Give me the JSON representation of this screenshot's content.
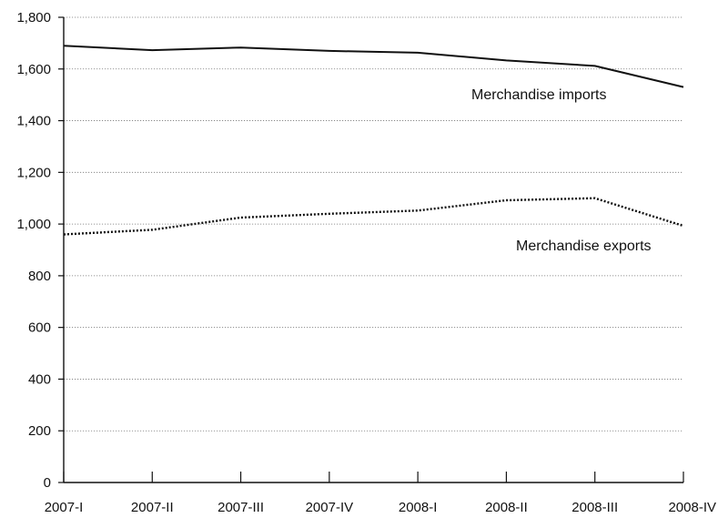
{
  "chart_data": {
    "type": "line",
    "title": "",
    "xlabel": "",
    "ylabel": "",
    "categories": [
      "2007-I",
      "2007-II",
      "2007-III",
      "2007-IV",
      "2008-I",
      "2008-II",
      "2008-III",
      "2008-IV"
    ],
    "ylim": [
      0,
      1800
    ],
    "yticks": [
      "0",
      "200",
      "400",
      "600",
      "800",
      "1,000",
      "1,200",
      "1,400",
      "1,600",
      "1,800"
    ],
    "grid": true,
    "legend": "none",
    "series": [
      {
        "name": "Merchandise imports",
        "style": "solid",
        "color": "#111111",
        "values": [
          1690,
          1673,
          1683,
          1670,
          1663,
          1633,
          1612,
          1530
        ]
      },
      {
        "name": "Merchandise exports",
        "style": "dotted",
        "color": "#111111",
        "values": [
          960,
          978,
          1025,
          1040,
          1052,
          1092,
          1100,
          993
        ]
      }
    ]
  }
}
